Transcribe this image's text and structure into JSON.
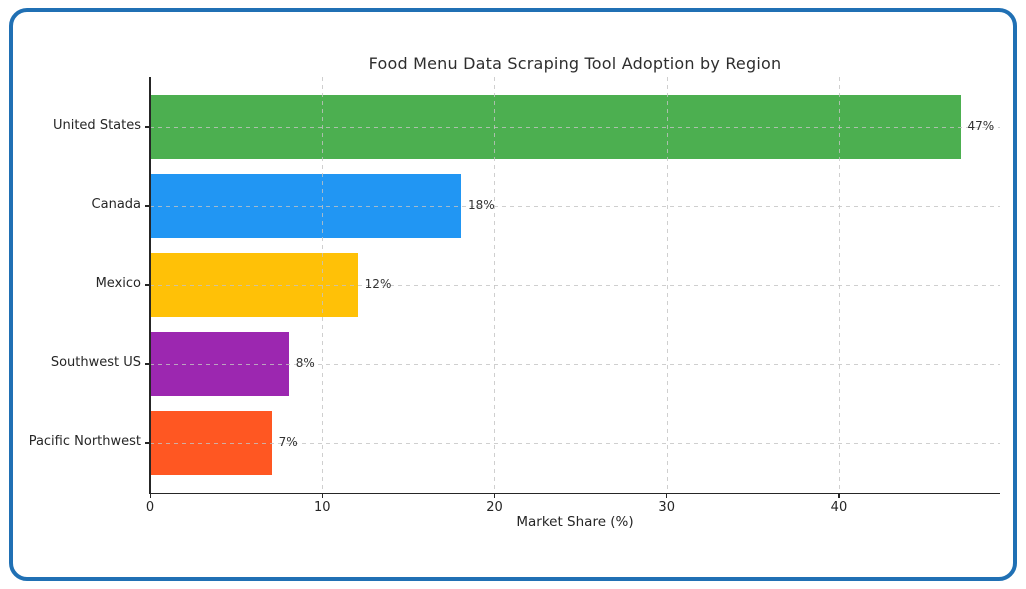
{
  "frame": {
    "border_color": "#2070b4"
  },
  "chart_data": {
    "type": "bar",
    "orientation": "horizontal",
    "title": "Food Menu Data Scraping Tool Adoption by Region",
    "xlabel": "Market Share (%)",
    "ylabel": "",
    "categories": [
      "United States",
      "Canada",
      "Mexico",
      "Southwest US",
      "Pacific Northwest"
    ],
    "values": [
      47,
      18,
      12,
      8,
      7
    ],
    "value_labels": [
      "47%",
      "18%",
      "12%",
      "8%",
      "7%"
    ],
    "bar_colors": [
      "#4caf50",
      "#2196f3",
      "#ffc107",
      "#9c27b0",
      "#ff5722"
    ],
    "xlim": [
      0,
      49.35
    ],
    "xticks": [
      0,
      10,
      20,
      30,
      40
    ],
    "xtick_labels": [
      "0",
      "10",
      "20",
      "30",
      "40"
    ],
    "grid": "both-dashed",
    "legend": "none"
  }
}
